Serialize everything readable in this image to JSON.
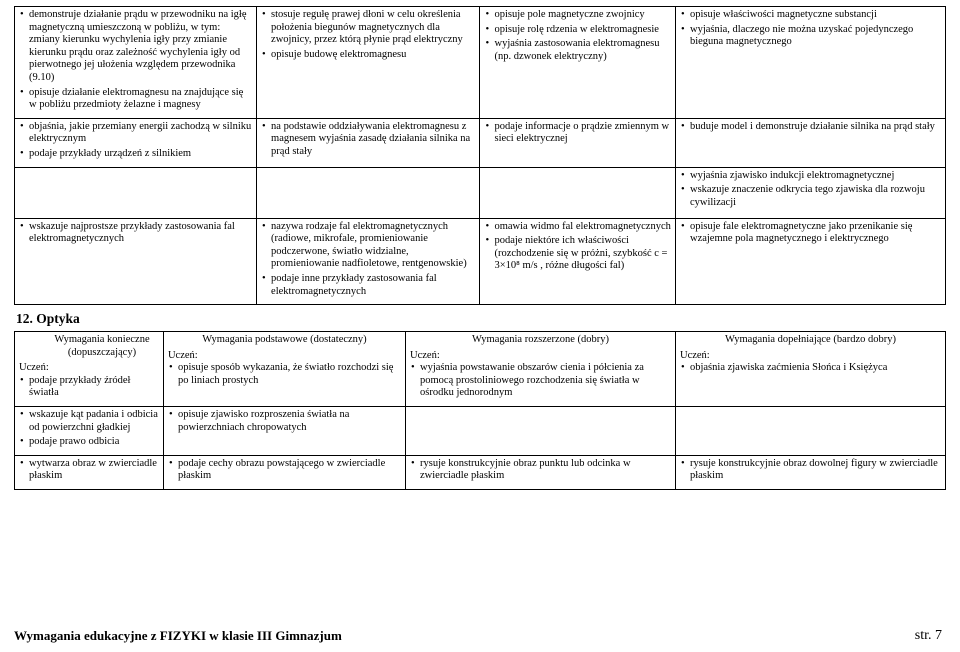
{
  "sectionTitle": "12. Optyka",
  "footerLeft": "Wymagania edukacyjne z FIZYKI  w klasie III Gimnazjum",
  "footerRight": "str. 7",
  "table1": {
    "widths": [
      "26%",
      "24%",
      "21%",
      "29%"
    ],
    "rows": [
      {
        "cells": [
          [
            "demonstruje działanie prądu w przewodniku na igłę magnetyczną umieszczoną w pobliżu, w tym: zmiany kierunku wychylenia igły przy zmianie kierunku prądu oraz zależność wychylenia igły od pierwotnego jej ułożenia względem przewodnika (9.10)",
            "opisuje działanie elektromagnesu na znajdujące się w pobliżu przedmioty żelazne i magnesy"
          ],
          [
            "stosuje regułę prawej dłoni w celu określenia położenia biegunów magnetycznych dla zwojnicy, przez którą płynie prąd elektryczny",
            "opisuje budowę elektromagnesu"
          ],
          [
            "opisuje pole magnetyczne zwojnicy",
            "opisuje rolę rdzenia w elektromagnesie",
            "wyjaśnia zastosowania elektromagnesu (np. dzwonek elektryczny)"
          ],
          [
            "opisuje właściwości magnetyczne substancji",
            "wyjaśnia, dlaczego nie można uzyskać pojedynczego bieguna magnetycznego"
          ]
        ]
      },
      {
        "cells": [
          [
            "objaśnia, jakie przemiany energii zachodzą w silniku elektrycznym",
            "podaje przykłady urządzeń z silnikiem"
          ],
          [
            "na podstawie oddziaływania elektromagnesu z magnesem wyjaśnia zasadę działania silnika na prąd stały"
          ],
          [
            "podaje informacje o prądzie zmiennym w sieci elektrycznej"
          ],
          [
            "buduje model i demonstruje działanie silnika na prąd stały"
          ]
        ]
      },
      {
        "cells": [
          [],
          [],
          [],
          [
            "wyjaśnia zjawisko indukcji elektromagnetycznej",
            "wskazuje znaczenie odkrycia tego zjawiska dla rozwoju cywilizacji"
          ]
        ],
        "spacer": true
      },
      {
        "cells": [
          [
            "wskazuje najprostsze przykłady zastosowania fal elektromagnetycznych"
          ],
          [
            "nazywa rodzaje fal elektromagnetycznych (radiowe, mikrofale, promieniowanie podczerwone, światło widzialne, promieniowanie nadfioletowe, rentgenowskie)",
            "podaje inne przykłady zastosowania fal elektromagnetycznych"
          ],
          [
            "omawia widmo fal elektromagnetycznych",
            "podaje niektóre ich właściwości (rozchodzenie się w próżni, szybkość  c =  3×10⁸ m/s , różne długości fal)"
          ],
          [
            "opisuje fale elektromagnetyczne jako przenikanie się wzajemne pola magnetycznego i elektrycznego"
          ]
        ]
      }
    ]
  },
  "table2": {
    "widths": [
      "16%",
      "26%",
      "29%",
      "29%"
    ],
    "headers": [
      {
        "center": "Wymagania konieczne (dopuszczający)",
        "indent": true
      },
      {
        "center": "Wymagania podstawowe (dostateczny)"
      },
      {
        "center": "Wymagania rozszerzone (dobry)"
      },
      {
        "center": "Wymagania dopełniające (bardzo dobry)"
      }
    ],
    "ucz": "Uczeń:",
    "rows": [
      {
        "cells": [
          [
            "podaje przykłady źródeł światła"
          ],
          [
            "opisuje sposób wykazania, że światło rozchodzi się po liniach prostych"
          ],
          [
            "wyjaśnia powstawanie obszarów cienia i półcienia za pomocą prostoliniowego rozchodzenia się światła w ośrodku jednorodnym"
          ],
          [
            "objaśnia zjawiska zaćmienia Słońca i Księżyca"
          ]
        ]
      },
      {
        "cells": [
          [
            "wskazuje kąt padania i odbicia od powierzchni gładkiej",
            "podaje prawo odbicia"
          ],
          [
            "opisuje zjawisko rozproszenia światła na powierzchniach chropowatych"
          ],
          [],
          []
        ]
      },
      {
        "cells": [
          [
            "wytwarza obraz w zwierciadle płaskim"
          ],
          [
            "podaje cechy obrazu powstającego w zwierciadle płaskim"
          ],
          [
            "rysuje konstrukcyjnie obraz punktu lub odcinka w zwierciadle płaskim"
          ],
          [
            "rysuje konstrukcyjnie obraz dowolnej figury w zwierciadle płaskim"
          ]
        ]
      }
    ]
  }
}
